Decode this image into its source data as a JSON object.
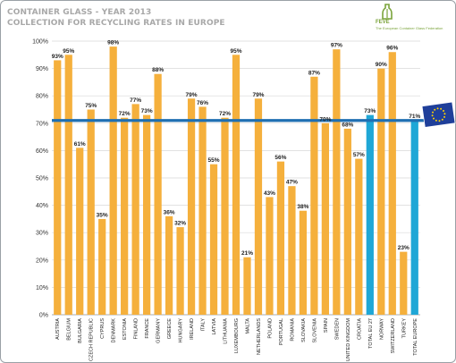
{
  "header": {
    "title_line1": "CONTAINER GLASS  - YEAR 2013",
    "title_line2": "COLLECTION FOR RECYCLING RATES IN EUROPE"
  },
  "logo": {
    "name": "FEVE",
    "subtitle": "The European Container Glass Federation",
    "color": "#7aa33a"
  },
  "chart_data": {
    "type": "bar",
    "title": "CONTAINER GLASS  - YEAR 2013\nCOLLECTION FOR RECYCLING RATES IN EUROPE",
    "xlabel": "",
    "ylabel": "",
    "ylim": [
      0,
      100
    ],
    "y_ticks": [
      "0%",
      "10%",
      "20%",
      "30%",
      "40%",
      "50%",
      "60%",
      "70%",
      "80%",
      "90%",
      "100%"
    ],
    "grid": true,
    "reference_line": 71,
    "colors": {
      "country": "#f5b03c",
      "total": "#1fa7d6",
      "reference": "#1f6fb2",
      "grid": "#d9d9d9"
    },
    "categories": [
      "AUSTRIA",
      "BELGIUM",
      "BULGARIA",
      "CZECH REPUBLIC",
      "CYPRUS",
      "DENMARK",
      "ESTONIA",
      "FINLAND",
      "FRANCE",
      "GERMANY",
      "GREECE",
      "HUNGARY",
      "IRELAND",
      "ITALY",
      "LATVIA",
      "LITHUANIA",
      "LUXEMBOURG",
      "MALTA",
      "NETHERLANDS",
      "POLAND",
      "PORTUGAL",
      "ROMANIA",
      "SLOVAKIA",
      "SLOVENIA",
      "SPAIN",
      "SWEDEN",
      "UNITED KINGDOM",
      "CROATIA",
      "TOTAL EU 27",
      "NORWAY",
      "SWITZERLAND",
      "TURKEY",
      "TOTAL EUROPE"
    ],
    "values": [
      93,
      95,
      61,
      75,
      35,
      98,
      72,
      77,
      73,
      88,
      36,
      32,
      79,
      76,
      55,
      72,
      95,
      21,
      79,
      43,
      56,
      47,
      38,
      87,
      70,
      97,
      68,
      57,
      73,
      90,
      96,
      23,
      71
    ],
    "labels": [
      "93%",
      "95%",
      "61%",
      "75%",
      "35%",
      "98%",
      "72%",
      "77%",
      "73%",
      "88%",
      "36%",
      "32%",
      "79%",
      "76%",
      "55%",
      "72%",
      "95%",
      "21%",
      "79%",
      "43%",
      "56%",
      "47%",
      "38%",
      "87%",
      "70%",
      "97%",
      "68%",
      "57%",
      "73%",
      "90%",
      "96%",
      "23%",
      "71%"
    ],
    "highlight": [
      "TOTAL EU 27",
      "TOTAL EUROPE"
    ]
  }
}
